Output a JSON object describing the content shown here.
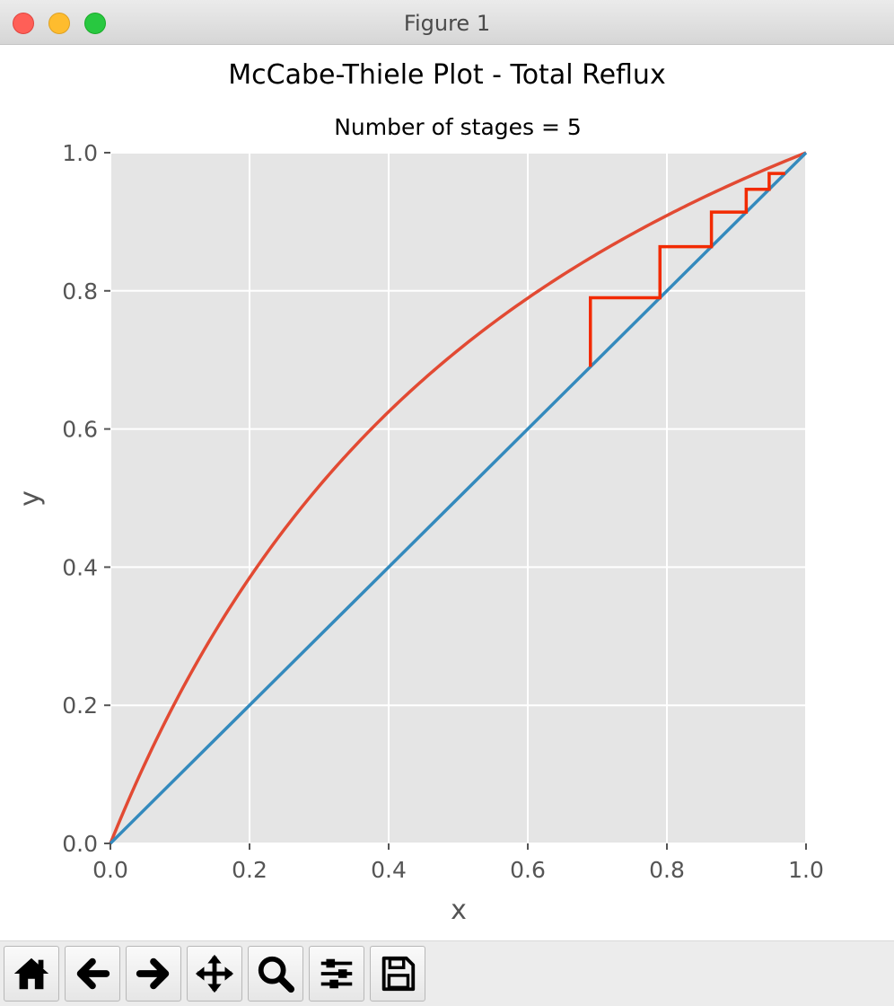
{
  "window": {
    "title": "Figure 1",
    "traffic_lights": [
      "close",
      "minimize",
      "zoom"
    ]
  },
  "chart_data": {
    "type": "line",
    "title": "McCabe-Thiele Plot - Total Reflux",
    "subtitle": "Number of stages = 5",
    "xlabel": "x",
    "ylabel": "y",
    "xlim": [
      0.0,
      1.0
    ],
    "ylim": [
      0.0,
      1.0
    ],
    "xticks": [
      "0.0",
      "0.2",
      "0.4",
      "0.6",
      "0.8",
      "1.0"
    ],
    "yticks": [
      "0.0",
      "0.2",
      "0.4",
      "0.6",
      "0.8",
      "1.0"
    ],
    "grid": true,
    "style": "ggplot",
    "alpha": 2.5,
    "series": [
      {
        "role": "equilibrium-curve",
        "color": "#E24A33",
        "x": [
          0,
          0.05,
          0.1,
          0.15,
          0.2,
          0.25,
          0.3,
          0.35,
          0.4,
          0.45,
          0.5,
          0.55,
          0.6,
          0.65,
          0.7,
          0.75,
          0.8,
          0.85,
          0.9,
          0.95,
          1.0
        ],
        "y": [
          0,
          0.116,
          0.217,
          0.306,
          0.385,
          0.455,
          0.517,
          0.574,
          0.625,
          0.672,
          0.714,
          0.753,
          0.789,
          0.823,
          0.854,
          0.882,
          0.909,
          0.934,
          0.957,
          0.979,
          1.0
        ]
      },
      {
        "role": "diagonal-line",
        "color": "#348ABD",
        "x": [
          0,
          1
        ],
        "y": [
          0,
          1
        ]
      },
      {
        "role": "stage-steps",
        "color": "#F22A00",
        "x": [
          0.69,
          0.69,
          0.79,
          0.79,
          0.864,
          0.864,
          0.914,
          0.914,
          0.947,
          0.947,
          0.97
        ],
        "y": [
          0.69,
          0.79,
          0.79,
          0.864,
          0.864,
          0.914,
          0.914,
          0.947,
          0.947,
          0.97,
          0.97
        ]
      }
    ]
  },
  "toolbar": {
    "buttons": [
      {
        "name": "home-icon",
        "tooltip": "Reset original view"
      },
      {
        "name": "back-arrow-icon",
        "tooltip": "Back to previous view"
      },
      {
        "name": "forward-arrow-icon",
        "tooltip": "Forward to next view"
      },
      {
        "name": "pan-move-icon",
        "tooltip": "Pan axes"
      },
      {
        "name": "zoom-magnifier-icon",
        "tooltip": "Zoom to rectangle"
      },
      {
        "name": "subplots-sliders-icon",
        "tooltip": "Configure subplots"
      },
      {
        "name": "save-floppy-icon",
        "tooltip": "Save the figure"
      }
    ]
  }
}
